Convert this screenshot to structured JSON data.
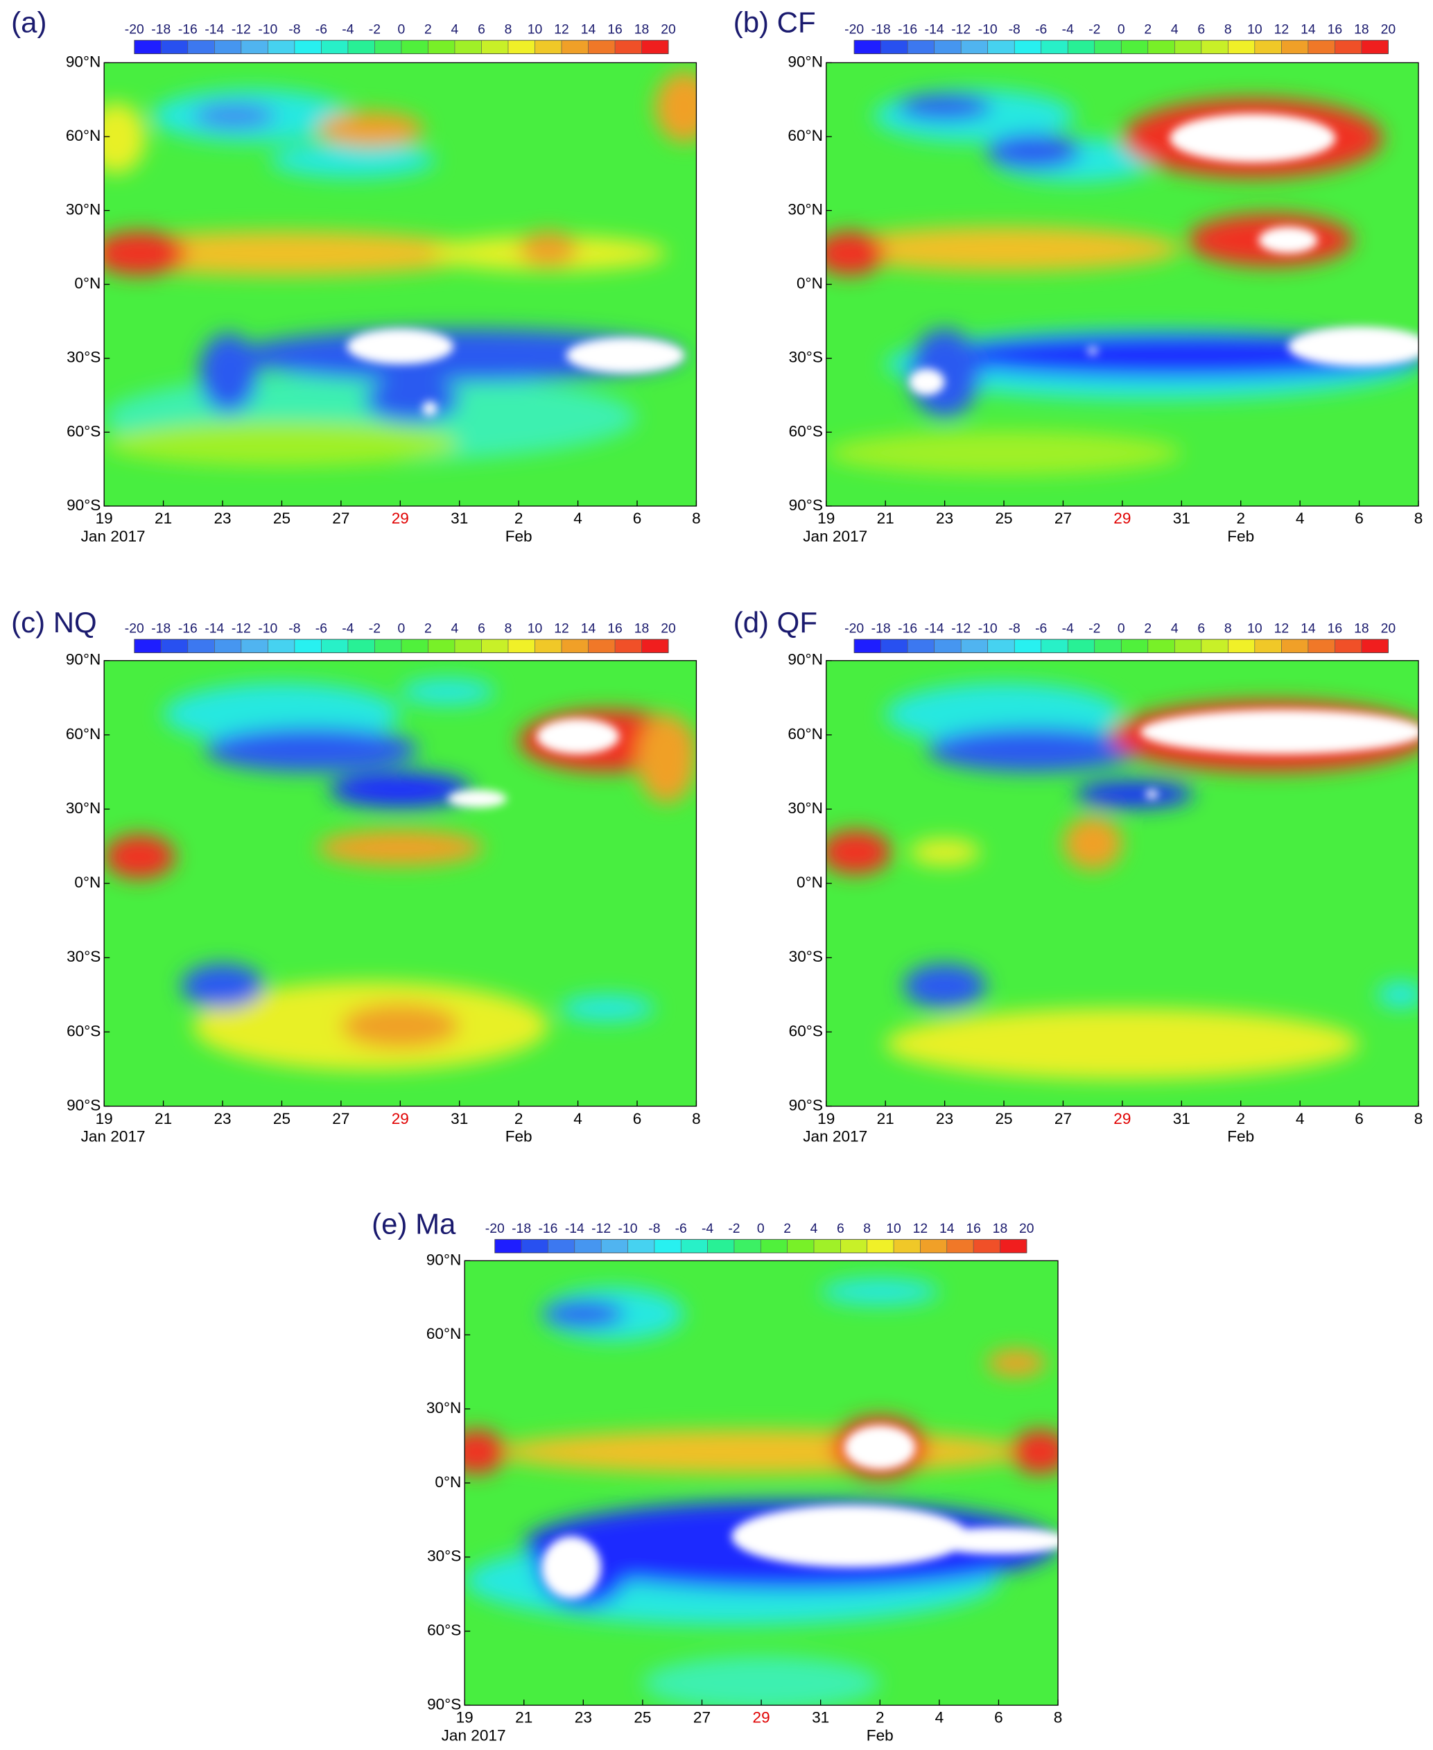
{
  "chart_data": [
    {
      "type": "contour",
      "title": "(a)",
      "colorbar": {
        "ticks": [
          -20,
          -18,
          -16,
          -14,
          -12,
          -10,
          -8,
          -6,
          -4,
          -2,
          0,
          2,
          4,
          6,
          8,
          10,
          12,
          14,
          16,
          18,
          20
        ],
        "colors": [
          "#1e1eff",
          "#2850f0",
          "#3c78f0",
          "#4696f0",
          "#50b4f0",
          "#46d2f0",
          "#28f0f0",
          "#28f0c8",
          "#28f096",
          "#3cf064",
          "#50f03c",
          "#78f028",
          "#a0f028",
          "#c8f028",
          "#f0f028",
          "#f0c828",
          "#f0a028",
          "#f07828",
          "#f05028",
          "#f01e1e"
        ]
      },
      "ylim": [
        -90,
        90
      ],
      "yticks": [
        {
          "value": 90,
          "label": "90°N"
        },
        {
          "value": 60,
          "label": "60°N"
        },
        {
          "value": 30,
          "label": "30°N"
        },
        {
          "value": 0,
          "label": "0°N"
        },
        {
          "value": -30,
          "label": "30°S"
        },
        {
          "value": -60,
          "label": "60°S"
        },
        {
          "value": -90,
          "label": "90°S"
        }
      ],
      "xticks": [
        "19",
        "21",
        "23",
        "25",
        "27",
        "29",
        "31",
        "2",
        "4",
        "6",
        "8"
      ],
      "xtick_colors": [
        "#000",
        "#000",
        "#000",
        "#000",
        "#000",
        "#e00000",
        "#000",
        "#000",
        "#000",
        "#000",
        "#000"
      ],
      "xsublabels": [
        "Jan 2017",
        null,
        null,
        null,
        null,
        null,
        null,
        "Feb",
        null,
        null,
        null
      ]
    },
    {
      "type": "contour",
      "title": "(b) CF",
      "colorbar": {
        "ticks": [
          -20,
          -18,
          -16,
          -14,
          -12,
          -10,
          -8,
          -6,
          -4,
          -2,
          0,
          2,
          4,
          6,
          8,
          10,
          12,
          14,
          16,
          18,
          20
        ],
        "colors": [
          "#1e1eff",
          "#2850f0",
          "#3c78f0",
          "#4696f0",
          "#50b4f0",
          "#46d2f0",
          "#28f0f0",
          "#28f0c8",
          "#28f096",
          "#3cf064",
          "#50f03c",
          "#78f028",
          "#a0f028",
          "#c8f028",
          "#f0f028",
          "#f0c828",
          "#f0a028",
          "#f07828",
          "#f05028",
          "#f01e1e"
        ]
      },
      "ylim": [
        -90,
        90
      ],
      "yticks": [
        {
          "value": 90,
          "label": "90°N"
        },
        {
          "value": 60,
          "label": "60°N"
        },
        {
          "value": 30,
          "label": "30°N"
        },
        {
          "value": 0,
          "label": "0°N"
        },
        {
          "value": -30,
          "label": "30°S"
        },
        {
          "value": -60,
          "label": "60°S"
        },
        {
          "value": -90,
          "label": "90°S"
        }
      ],
      "xticks": [
        "19",
        "21",
        "23",
        "25",
        "27",
        "29",
        "31",
        "2",
        "4",
        "6",
        "8"
      ],
      "xtick_colors": [
        "#000",
        "#000",
        "#000",
        "#000",
        "#000",
        "#e00000",
        "#000",
        "#000",
        "#000",
        "#000",
        "#000"
      ],
      "xsublabels": [
        "Jan 2017",
        null,
        null,
        null,
        null,
        null,
        null,
        "Feb",
        null,
        null,
        null
      ]
    },
    {
      "type": "contour",
      "title": "(c) NQ",
      "colorbar": {
        "ticks": [
          -20,
          -18,
          -16,
          -14,
          -12,
          -10,
          -8,
          -6,
          -4,
          -2,
          0,
          2,
          4,
          6,
          8,
          10,
          12,
          14,
          16,
          18,
          20
        ],
        "colors": [
          "#1e1eff",
          "#2850f0",
          "#3c78f0",
          "#4696f0",
          "#50b4f0",
          "#46d2f0",
          "#28f0f0",
          "#28f0c8",
          "#28f096",
          "#3cf064",
          "#50f03c",
          "#78f028",
          "#a0f028",
          "#c8f028",
          "#f0f028",
          "#f0c828",
          "#f0a028",
          "#f07828",
          "#f05028",
          "#f01e1e"
        ]
      },
      "ylim": [
        -90,
        90
      ],
      "yticks": [
        {
          "value": 90,
          "label": "90°N"
        },
        {
          "value": 60,
          "label": "60°N"
        },
        {
          "value": 30,
          "label": "30°N"
        },
        {
          "value": 0,
          "label": "0°N"
        },
        {
          "value": -30,
          "label": "30°S"
        },
        {
          "value": -60,
          "label": "60°S"
        },
        {
          "value": -90,
          "label": "90°S"
        }
      ],
      "xticks": [
        "19",
        "21",
        "23",
        "25",
        "27",
        "29",
        "31",
        "2",
        "4",
        "6",
        "8"
      ],
      "xtick_colors": [
        "#000",
        "#000",
        "#000",
        "#000",
        "#000",
        "#e00000",
        "#000",
        "#000",
        "#000",
        "#000",
        "#000"
      ],
      "xsublabels": [
        "Jan 2017",
        null,
        null,
        null,
        null,
        null,
        null,
        "Feb",
        null,
        null,
        null
      ]
    },
    {
      "type": "contour",
      "title": "(d) QF",
      "colorbar": {
        "ticks": [
          -20,
          -18,
          -16,
          -14,
          -12,
          -10,
          -8,
          -6,
          -4,
          -2,
          0,
          2,
          4,
          6,
          8,
          10,
          12,
          14,
          16,
          18,
          20
        ],
        "colors": [
          "#1e1eff",
          "#2850f0",
          "#3c78f0",
          "#4696f0",
          "#50b4f0",
          "#46d2f0",
          "#28f0f0",
          "#28f0c8",
          "#28f096",
          "#3cf064",
          "#50f03c",
          "#78f028",
          "#a0f028",
          "#c8f028",
          "#f0f028",
          "#f0c828",
          "#f0a028",
          "#f07828",
          "#f05028",
          "#f01e1e"
        ]
      },
      "ylim": [
        -90,
        90
      ],
      "yticks": [
        {
          "value": 90,
          "label": "90°N"
        },
        {
          "value": 60,
          "label": "60°N"
        },
        {
          "value": 30,
          "label": "30°N"
        },
        {
          "value": 0,
          "label": "0°N"
        },
        {
          "value": -30,
          "label": "30°S"
        },
        {
          "value": -60,
          "label": "60°S"
        },
        {
          "value": -90,
          "label": "90°S"
        }
      ],
      "xticks": [
        "19",
        "21",
        "23",
        "25",
        "27",
        "29",
        "31",
        "2",
        "4",
        "6",
        "8"
      ],
      "xtick_colors": [
        "#000",
        "#000",
        "#000",
        "#000",
        "#000",
        "#e00000",
        "#000",
        "#000",
        "#000",
        "#000",
        "#000"
      ],
      "xsublabels": [
        "Jan 2017",
        null,
        null,
        null,
        null,
        null,
        null,
        "Feb",
        null,
        null,
        null
      ]
    },
    {
      "type": "contour",
      "title": "(e) Ma",
      "colorbar": {
        "ticks": [
          -20,
          -18,
          -16,
          -14,
          -12,
          -10,
          -8,
          -6,
          -4,
          -2,
          0,
          2,
          4,
          6,
          8,
          10,
          12,
          14,
          16,
          18,
          20
        ],
        "colors": [
          "#1e1eff",
          "#2850f0",
          "#3c78f0",
          "#4696f0",
          "#50b4f0",
          "#46d2f0",
          "#28f0f0",
          "#28f0c8",
          "#28f096",
          "#3cf064",
          "#50f03c",
          "#78f028",
          "#a0f028",
          "#c8f028",
          "#f0f028",
          "#f0c828",
          "#f0a028",
          "#f07828",
          "#f05028",
          "#f01e1e"
        ]
      },
      "ylim": [
        -90,
        90
      ],
      "yticks": [
        {
          "value": 90,
          "label": "90°N"
        },
        {
          "value": 60,
          "label": "60°N"
        },
        {
          "value": 30,
          "label": "30°N"
        },
        {
          "value": 0,
          "label": "0°N"
        },
        {
          "value": -30,
          "label": "30°S"
        },
        {
          "value": -60,
          "label": "60°S"
        },
        {
          "value": -90,
          "label": "90°S"
        }
      ],
      "xticks": [
        "19",
        "21",
        "23",
        "25",
        "27",
        "29",
        "31",
        "2",
        "4",
        "6",
        "8"
      ],
      "xtick_colors": [
        "#000",
        "#000",
        "#000",
        "#000",
        "#000",
        "#e00000",
        "#000",
        "#000",
        "#000",
        "#000",
        "#000"
      ],
      "xsublabels": [
        "Jan 2017",
        null,
        null,
        null,
        null,
        null,
        null,
        "Feb",
        null,
        null,
        null
      ]
    }
  ]
}
